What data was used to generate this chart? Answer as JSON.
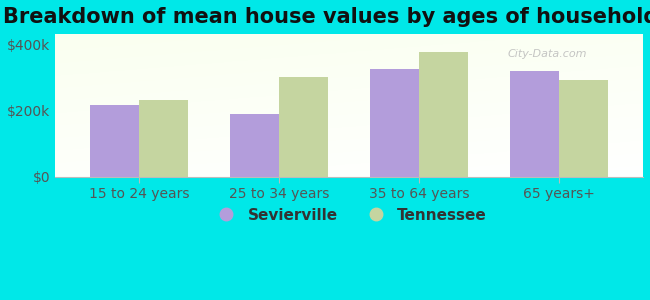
{
  "title": "Breakdown of mean house values by ages of householders",
  "categories": [
    "15 to 24 years",
    "25 to 34 years",
    "35 to 64 years",
    "65 years+"
  ],
  "sevierville": [
    215000,
    190000,
    325000,
    318000
  ],
  "tennessee": [
    232000,
    300000,
    375000,
    290000
  ],
  "sevierville_color": "#b39ddb",
  "tennessee_color": "#c5d5a0",
  "background_color": "#00e8e8",
  "ylim": [
    0,
    430000
  ],
  "yticks": [
    0,
    200000,
    400000
  ],
  "ytick_labels": [
    "$0",
    "$200k",
    "$400k"
  ],
  "bar_width": 0.35,
  "legend_sevierville": "Sevierville",
  "legend_tennessee": "Tennessee",
  "title_fontsize": 15,
  "tick_fontsize": 10,
  "legend_fontsize": 11
}
